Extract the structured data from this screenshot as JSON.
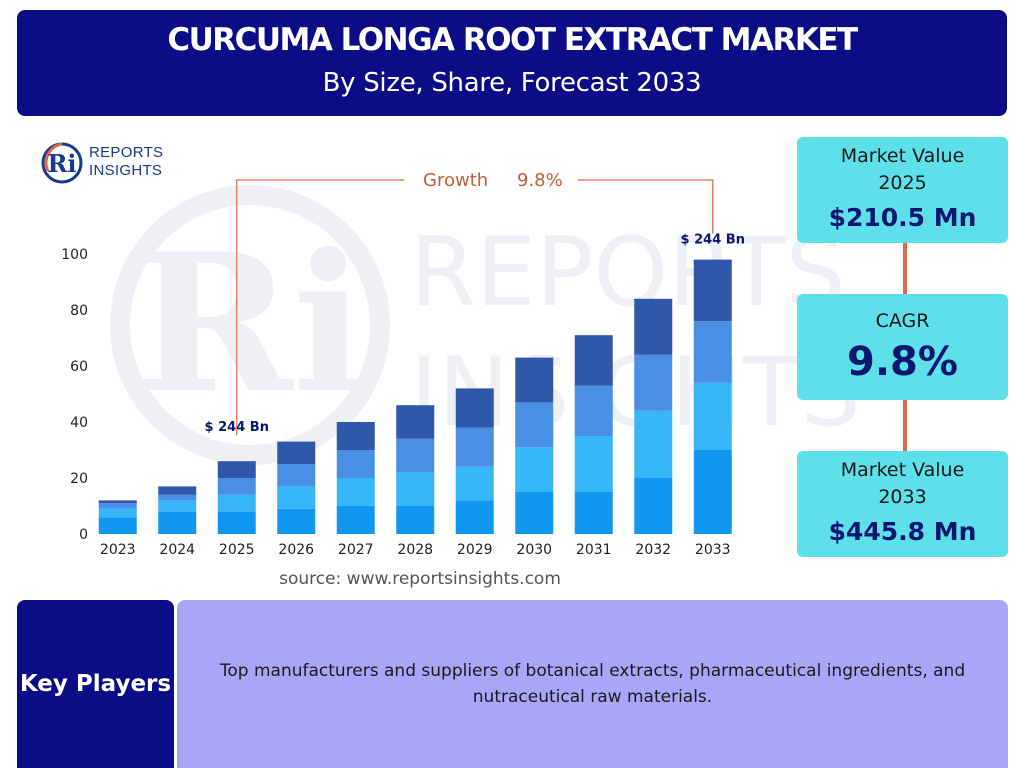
{
  "header": {
    "title": "CURCUMA LONGA ROOT EXTRACT MARKET",
    "subtitle": "By Size, Share, Forecast 2033"
  },
  "logo": {
    "line1": "REPORTS",
    "line2": "INSIGHTS"
  },
  "colors": {
    "navy": "#0c0c86",
    "cyan_box": "#5ee0eb",
    "accent_orange": "#e06a45",
    "lavender": "#a9a5f9",
    "series": [
      "#1197f0",
      "#37b6f7",
      "#4a8fe6",
      "#2f57aa"
    ]
  },
  "chart_data": {
    "type": "bar",
    "stacked": true,
    "categories": [
      "2023",
      "2024",
      "2025",
      "2026",
      "2027",
      "2028",
      "2029",
      "2030",
      "2031",
      "2032",
      "2033"
    ],
    "series": [
      {
        "values": [
          6,
          8,
          8,
          9,
          10,
          10,
          12,
          15,
          15,
          20,
          30
        ]
      },
      {
        "values": [
          3,
          4,
          6,
          8,
          10,
          12,
          12,
          16,
          20,
          24,
          24
        ]
      },
      {
        "values": [
          2,
          2,
          6,
          8,
          10,
          12,
          14,
          16,
          18,
          20,
          22
        ]
      },
      {
        "values": [
          1,
          3,
          6,
          8,
          10,
          12,
          14,
          16,
          18,
          20,
          22
        ]
      }
    ],
    "ylim": [
      0,
      100
    ],
    "yticks": [
      0,
      20,
      40,
      60,
      80,
      100
    ],
    "grid": false,
    "annotations": {
      "growth_label": "Growth",
      "growth_value": "9.8%",
      "start_label": "$ 244 Bn",
      "end_label": "$ 244 Bn"
    }
  },
  "source": "source: www.reportsinsights.com",
  "metrics": {
    "market_value_2025": {
      "label": "Market Value",
      "year": "2025",
      "value": "$210.5 Mn"
    },
    "cagr": {
      "label": "CAGR",
      "value": "9.8%"
    },
    "market_value_2033": {
      "label": "Market Value",
      "year": "2033",
      "value": "$445.8 Mn"
    }
  },
  "key_players": {
    "label": "Key Players",
    "text": "Top manufacturers and suppliers of botanical extracts, pharmaceutical ingredients, and nutraceutical raw materials."
  }
}
